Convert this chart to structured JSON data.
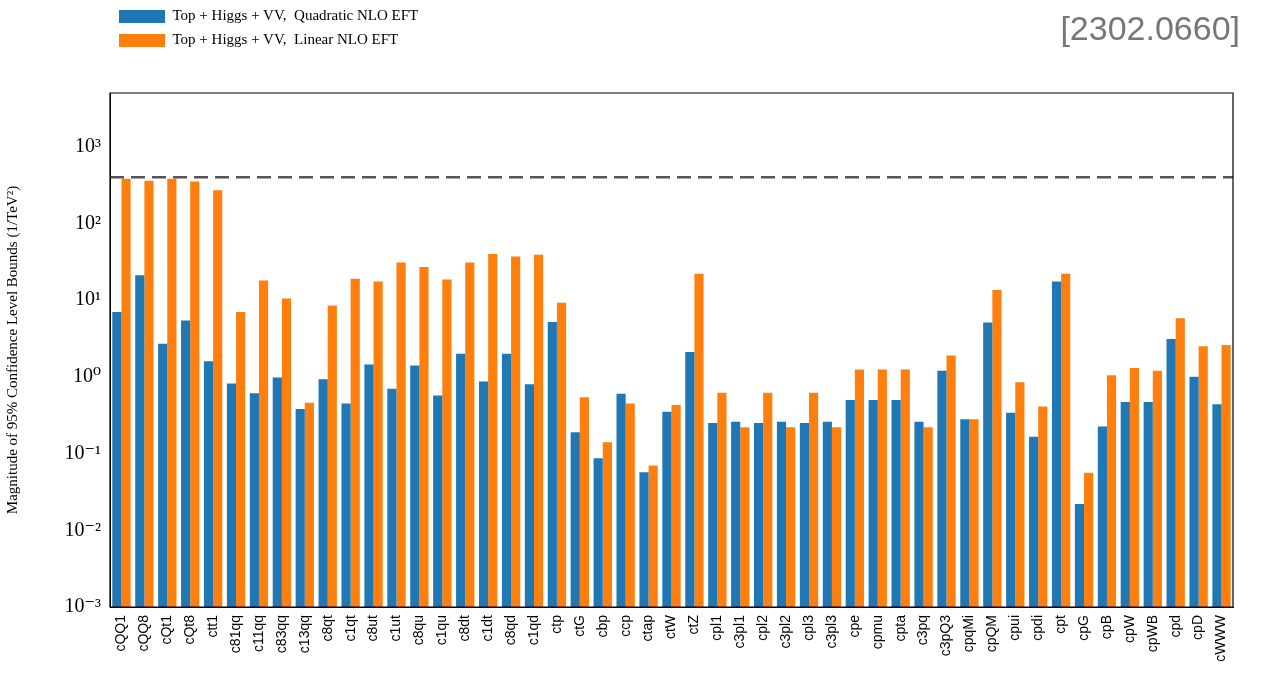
{
  "chart_data": {
    "type": "bar",
    "ylabel": "Magnitude of 95% Confidence Level Bounds (1/TeV²)",
    "annotations": [
      "[2302.0660]"
    ],
    "categories": [
      "cQQ1",
      "cQQ8",
      "cQt1",
      "cQt8",
      "ctt1",
      "c81qq",
      "c11qq",
      "c83qq",
      "c13qq",
      "c8qt",
      "c1qt",
      "c8ut",
      "c1ut",
      "c8qu",
      "c1qu",
      "c8dt",
      "c1dt",
      "c8qd",
      "c1qd",
      "ctp",
      "ctG",
      "cbp",
      "ccp",
      "ctap",
      "ctW",
      "ctZ",
      "cpl1",
      "c3pl1",
      "cpl2",
      "c3pl2",
      "cpl3",
      "c3pl3",
      "cpe",
      "cpmu",
      "cpta",
      "c3pq",
      "c3pQ3",
      "cpqMi",
      "cpQM",
      "cpui",
      "cpdi",
      "cpt",
      "cpG",
      "cpB",
      "cpW",
      "cpWB",
      "cpd",
      "cpD",
      "cWWW"
    ],
    "series": [
      {
        "name": "Top + Higgs + VV,  Quadratic NLO EFT",
        "color": "#1f77b4",
        "values": [
          7,
          21,
          2.7,
          5.4,
          1.6,
          0.82,
          0.61,
          0.98,
          0.38,
          0.93,
          0.45,
          1.45,
          0.7,
          1.4,
          0.57,
          2.0,
          0.87,
          2.0,
          0.8,
          5.2,
          0.19,
          0.087,
          0.6,
          0.057,
          0.35,
          2.1,
          0.25,
          0.26,
          0.25,
          0.26,
          0.25,
          0.26,
          0.5,
          0.5,
          0.5,
          0.26,
          1.2,
          0.28,
          5.1,
          0.34,
          0.165,
          17.5,
          0.022,
          0.225,
          0.47,
          0.47,
          3.1,
          1.0,
          0.44
        ]
      },
      {
        "name": "Top + Higgs + VV,  Linear NLO EFT",
        "color": "#ff7f0e",
        "values": [
          380,
          360,
          380,
          350,
          270,
          7.0,
          18,
          10.5,
          0.46,
          8.5,
          19,
          17.5,
          31,
          27,
          18.5,
          31,
          40,
          37,
          39,
          9.2,
          0.54,
          0.14,
          0.45,
          0.07,
          0.43,
          22,
          0.62,
          0.22,
          0.62,
          0.22,
          0.62,
          0.22,
          1.25,
          1.25,
          1.25,
          0.22,
          1.9,
          0.28,
          13.5,
          0.85,
          0.41,
          22,
          0.056,
          1.05,
          1.3,
          1.2,
          5.8,
          2.5,
          2.6
        ]
      }
    ],
    "log": "y",
    "ylim": [
      0.001,
      5000
    ],
    "yticks": [
      {
        "value": 0.001,
        "label": "10⁻³"
      },
      {
        "value": 0.01,
        "label": "10⁻²"
      },
      {
        "value": 0.1,
        "label": "10⁻¹"
      },
      {
        "value": 1,
        "label": "10⁰"
      },
      {
        "value": 10,
        "label": "10¹"
      },
      {
        "value": 100,
        "label": "10²"
      },
      {
        "value": 1000,
        "label": "10³"
      }
    ],
    "ref_lines": [
      {
        "axis": "y",
        "value": 400,
        "color": "#555555",
        "line_style": "dashed"
      }
    ],
    "grid": false,
    "legend": "top left"
  }
}
